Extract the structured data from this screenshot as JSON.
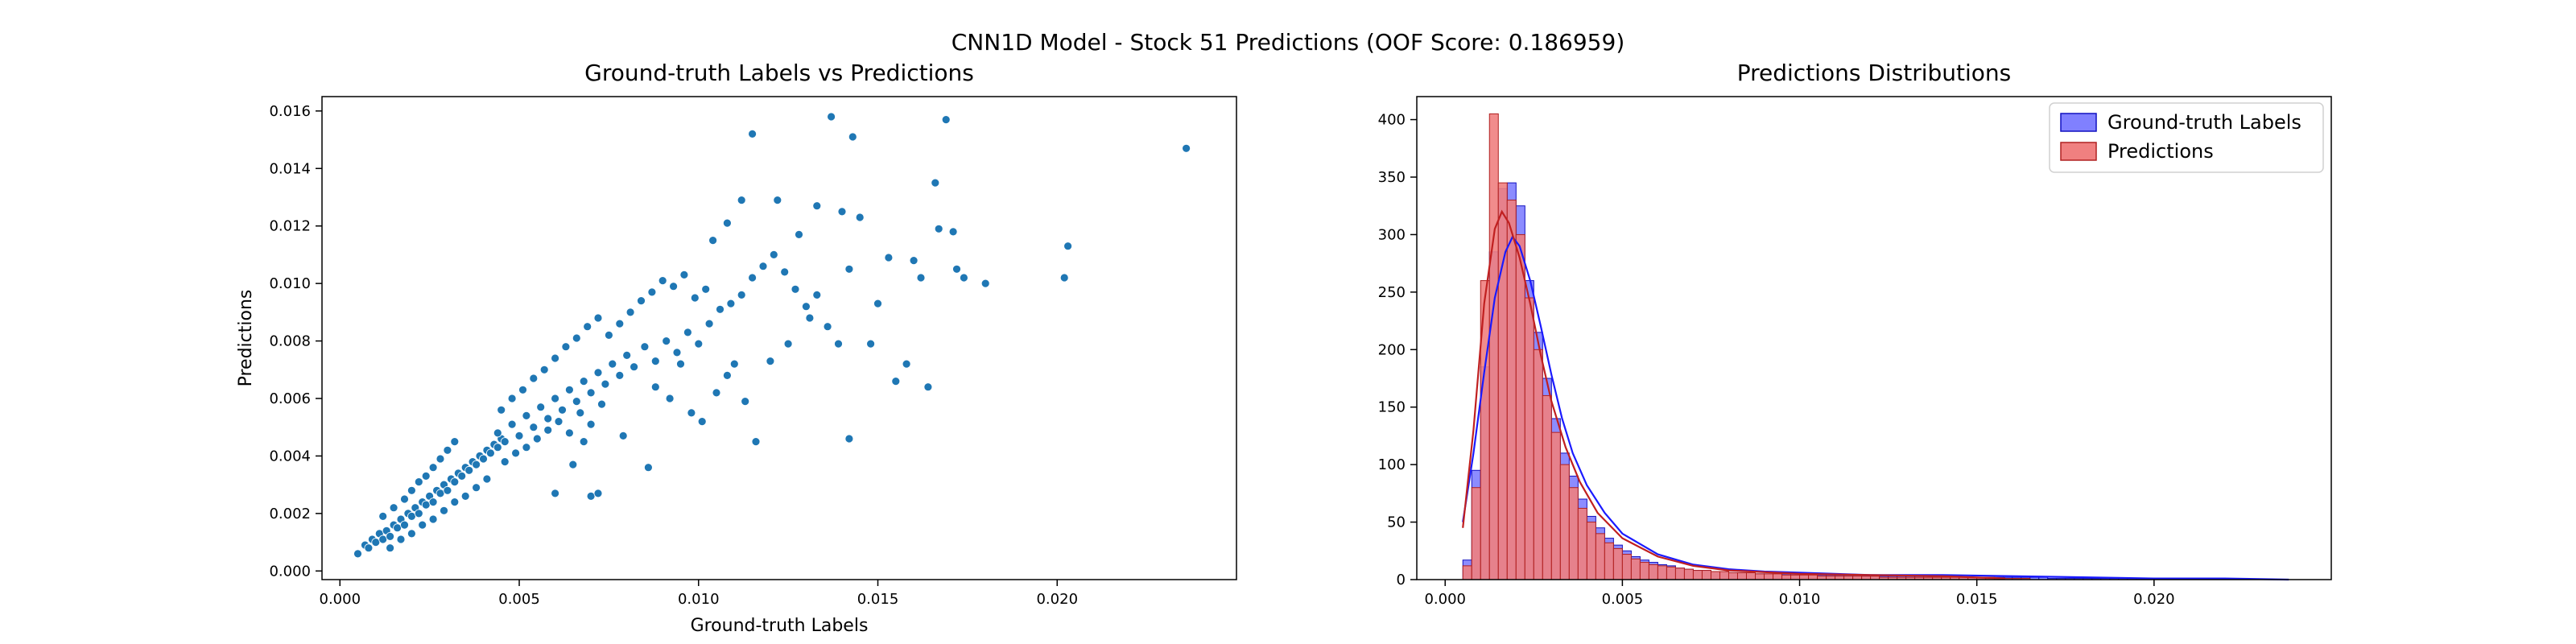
{
  "figure": {
    "suptitle": "CNN1D Model - Stock 51 Predictions (OOF Score: 0.186959)"
  },
  "chart_data": [
    {
      "type": "scatter",
      "title": "Ground-truth Labels vs Predictions",
      "xlabel": "Ground-truth Labels",
      "ylabel": "Predictions",
      "xlim": [
        -0.0005,
        0.025
      ],
      "ylim": [
        -0.0003,
        0.0165
      ],
      "xticks": [
        0.0,
        0.005,
        0.01,
        0.015,
        0.02
      ],
      "xtick_labels": [
        "0.000",
        "0.005",
        "0.010",
        "0.015",
        "0.020"
      ],
      "yticks": [
        0.0,
        0.002,
        0.004,
        0.006,
        0.008,
        0.01,
        0.012,
        0.014,
        0.016
      ],
      "ytick_labels": [
        "0.000",
        "0.002",
        "0.004",
        "0.006",
        "0.008",
        "0.010",
        "0.012",
        "0.014",
        "0.016"
      ],
      "grid": false,
      "color": "#1f77b4",
      "points": [
        [
          0.0005,
          0.0006
        ],
        [
          0.0007,
          0.0009
        ],
        [
          0.0008,
          0.0008
        ],
        [
          0.0009,
          0.0011
        ],
        [
          0.001,
          0.001
        ],
        [
          0.0011,
          0.0013
        ],
        [
          0.0012,
          0.0011
        ],
        [
          0.0013,
          0.0014
        ],
        [
          0.0014,
          0.0012
        ],
        [
          0.0015,
          0.0016
        ],
        [
          0.0016,
          0.0015
        ],
        [
          0.0017,
          0.0018
        ],
        [
          0.0018,
          0.0016
        ],
        [
          0.0019,
          0.002
        ],
        [
          0.002,
          0.0019
        ],
        [
          0.0021,
          0.0022
        ],
        [
          0.0022,
          0.002
        ],
        [
          0.0023,
          0.0024
        ],
        [
          0.0024,
          0.0023
        ],
        [
          0.0025,
          0.0026
        ],
        [
          0.0026,
          0.0024
        ],
        [
          0.0027,
          0.0028
        ],
        [
          0.0028,
          0.0027
        ],
        [
          0.0029,
          0.003
        ],
        [
          0.003,
          0.0028
        ],
        [
          0.0031,
          0.0032
        ],
        [
          0.0032,
          0.0031
        ],
        [
          0.0033,
          0.0034
        ],
        [
          0.0034,
          0.0033
        ],
        [
          0.0035,
          0.0036
        ],
        [
          0.0036,
          0.0035
        ],
        [
          0.0037,
          0.0038
        ],
        [
          0.0038,
          0.0037
        ],
        [
          0.0039,
          0.004
        ],
        [
          0.004,
          0.0039
        ],
        [
          0.0041,
          0.0042
        ],
        [
          0.0042,
          0.0041
        ],
        [
          0.0043,
          0.0044
        ],
        [
          0.0044,
          0.0043
        ],
        [
          0.0045,
          0.0046
        ],
        [
          0.0012,
          0.0019
        ],
        [
          0.0015,
          0.0022
        ],
        [
          0.0018,
          0.0025
        ],
        [
          0.002,
          0.0028
        ],
        [
          0.0022,
          0.0031
        ],
        [
          0.0024,
          0.0033
        ],
        [
          0.0026,
          0.0036
        ],
        [
          0.0028,
          0.0039
        ],
        [
          0.003,
          0.0042
        ],
        [
          0.0032,
          0.0045
        ],
        [
          0.0014,
          0.0008
        ],
        [
          0.0017,
          0.0011
        ],
        [
          0.002,
          0.0013
        ],
        [
          0.0023,
          0.0016
        ],
        [
          0.0026,
          0.0018
        ],
        [
          0.0029,
          0.0021
        ],
        [
          0.0032,
          0.0024
        ],
        [
          0.0035,
          0.0026
        ],
        [
          0.0038,
          0.0029
        ],
        [
          0.0041,
          0.0032
        ],
        [
          0.0044,
          0.0048
        ],
        [
          0.0046,
          0.0045
        ],
        [
          0.0048,
          0.0051
        ],
        [
          0.005,
          0.0047
        ],
        [
          0.0052,
          0.0054
        ],
        [
          0.0054,
          0.005
        ],
        [
          0.0056,
          0.0057
        ],
        [
          0.0058,
          0.0053
        ],
        [
          0.006,
          0.006
        ],
        [
          0.0062,
          0.0056
        ],
        [
          0.0064,
          0.0063
        ],
        [
          0.0066,
          0.0059
        ],
        [
          0.0068,
          0.0066
        ],
        [
          0.007,
          0.0062
        ],
        [
          0.0072,
          0.0069
        ],
        [
          0.0074,
          0.0065
        ],
        [
          0.0076,
          0.0072
        ],
        [
          0.0078,
          0.0068
        ],
        [
          0.008,
          0.0075
        ],
        [
          0.0082,
          0.0071
        ],
        [
          0.0046,
          0.0038
        ],
        [
          0.0049,
          0.0041
        ],
        [
          0.0052,
          0.0043
        ],
        [
          0.0055,
          0.0046
        ],
        [
          0.0058,
          0.0049
        ],
        [
          0.0061,
          0.0052
        ],
        [
          0.0064,
          0.0048
        ],
        [
          0.0067,
          0.0055
        ],
        [
          0.007,
          0.0051
        ],
        [
          0.0073,
          0.0058
        ],
        [
          0.0045,
          0.0056
        ],
        [
          0.0048,
          0.006
        ],
        [
          0.0051,
          0.0063
        ],
        [
          0.0054,
          0.0067
        ],
        [
          0.0057,
          0.007
        ],
        [
          0.006,
          0.0074
        ],
        [
          0.0063,
          0.0078
        ],
        [
          0.0066,
          0.0081
        ],
        [
          0.0069,
          0.0085
        ],
        [
          0.0072,
          0.0088
        ],
        [
          0.0075,
          0.0082
        ],
        [
          0.0078,
          0.0086
        ],
        [
          0.0081,
          0.009
        ],
        [
          0.0084,
          0.0094
        ],
        [
          0.0087,
          0.0097
        ],
        [
          0.009,
          0.0101
        ],
        [
          0.0093,
          0.0099
        ],
        [
          0.0096,
          0.0103
        ],
        [
          0.0099,
          0.0095
        ],
        [
          0.0102,
          0.0098
        ],
        [
          0.0085,
          0.0078
        ],
        [
          0.0088,
          0.0073
        ],
        [
          0.0091,
          0.008
        ],
        [
          0.0094,
          0.0076
        ],
        [
          0.0097,
          0.0083
        ],
        [
          0.01,
          0.0079
        ],
        [
          0.0103,
          0.0086
        ],
        [
          0.0106,
          0.0091
        ],
        [
          0.0109,
          0.0093
        ],
        [
          0.0112,
          0.0096
        ],
        [
          0.006,
          0.0027
        ],
        [
          0.0065,
          0.0037
        ],
        [
          0.007,
          0.0026
        ],
        [
          0.0072,
          0.0027
        ],
        [
          0.0086,
          0.0036
        ],
        [
          0.0079,
          0.0047
        ],
        [
          0.0068,
          0.0045
        ],
        [
          0.0088,
          0.0064
        ],
        [
          0.0092,
          0.006
        ],
        [
          0.0098,
          0.0055
        ],
        [
          0.0105,
          0.0062
        ],
        [
          0.0108,
          0.0068
        ],
        [
          0.0101,
          0.0052
        ],
        [
          0.0095,
          0.0072
        ],
        [
          0.011,
          0.0072
        ],
        [
          0.0113,
          0.0059
        ],
        [
          0.0116,
          0.0045
        ],
        [
          0.012,
          0.0073
        ],
        [
          0.0125,
          0.0079
        ],
        [
          0.0131,
          0.0088
        ],
        [
          0.0115,
          0.0102
        ],
        [
          0.0118,
          0.0106
        ],
        [
          0.0121,
          0.011
        ],
        [
          0.0124,
          0.0104
        ],
        [
          0.0127,
          0.0098
        ],
        [
          0.013,
          0.0092
        ],
        [
          0.0133,
          0.0096
        ],
        [
          0.0136,
          0.0085
        ],
        [
          0.0139,
          0.0079
        ],
        [
          0.0142,
          0.0105
        ],
        [
          0.0104,
          0.0115
        ],
        [
          0.0108,
          0.0121
        ],
        [
          0.0112,
          0.0129
        ],
        [
          0.0115,
          0.0152
        ],
        [
          0.0122,
          0.0129
        ],
        [
          0.0128,
          0.0117
        ],
        [
          0.0133,
          0.0127
        ],
        [
          0.0137,
          0.0158
        ],
        [
          0.014,
          0.0125
        ],
        [
          0.0143,
          0.0151
        ],
        [
          0.0145,
          0.0123
        ],
        [
          0.015,
          0.0093
        ],
        [
          0.0153,
          0.0109
        ],
        [
          0.0155,
          0.0066
        ],
        [
          0.0158,
          0.0072
        ],
        [
          0.0162,
          0.0102
        ],
        [
          0.0164,
          0.0064
        ],
        [
          0.0166,
          0.0135
        ],
        [
          0.0167,
          0.0119
        ],
        [
          0.0169,
          0.0157
        ],
        [
          0.0171,
          0.0118
        ],
        [
          0.0172,
          0.0105
        ],
        [
          0.0174,
          0.0102
        ],
        [
          0.018,
          0.01
        ],
        [
          0.0202,
          0.0102
        ],
        [
          0.0203,
          0.0113
        ],
        [
          0.0236,
          0.0147
        ],
        [
          0.0142,
          0.0046
        ],
        [
          0.016,
          0.0108
        ],
        [
          0.0148,
          0.0079
        ]
      ]
    },
    {
      "type": "histogram",
      "title": "Predictions Distributions",
      "xlabel": "",
      "ylabel": "",
      "xlim": [
        -0.0008,
        0.025
      ],
      "ylim": [
        0,
        420
      ],
      "xticks": [
        0.0,
        0.005,
        0.01,
        0.015,
        0.02
      ],
      "xtick_labels": [
        "0.000",
        "0.005",
        "0.010",
        "0.015",
        "0.020"
      ],
      "yticks": [
        0,
        50,
        100,
        150,
        200,
        250,
        300,
        350,
        400
      ],
      "ytick_labels": [
        "0",
        "50",
        "100",
        "150",
        "200",
        "250",
        "300",
        "350",
        "400"
      ],
      "grid": false,
      "legend": {
        "location": "upper right",
        "entries": [
          "Ground-truth Labels",
          "Predictions"
        ]
      },
      "bin_width": 0.00025,
      "bin_start": 0.0005,
      "series": [
        {
          "name": "Ground-truth Labels",
          "face": "#8080ff",
          "edge": "#1010c0",
          "kde_color": "#1a1aff",
          "counts": [
            17,
            95,
            185,
            285,
            340,
            345,
            325,
            260,
            215,
            175,
            140,
            110,
            90,
            70,
            55,
            45,
            36,
            30,
            25,
            20,
            17,
            15,
            13,
            12,
            10,
            9,
            8,
            8,
            7,
            7,
            6,
            6,
            6,
            5,
            5,
            5,
            5,
            5,
            5,
            4,
            4,
            4,
            4,
            4,
            4,
            3,
            3,
            3,
            3,
            3,
            3,
            3,
            2,
            2,
            2,
            2,
            2,
            2,
            2,
            2,
            2,
            2,
            2,
            2,
            2,
            2,
            1,
            1,
            1,
            1,
            1,
            1,
            1,
            1,
            1,
            1,
            1,
            1,
            1,
            1
          ],
          "kde": [
            [
              0.0005,
              50
            ],
            [
              0.0008,
              110
            ],
            [
              0.0011,
              180
            ],
            [
              0.0014,
              245
            ],
            [
              0.0017,
              285
            ],
            [
              0.0019,
              298
            ],
            [
              0.0021,
              290
            ],
            [
              0.0024,
              260
            ],
            [
              0.0027,
              220
            ],
            [
              0.003,
              178
            ],
            [
              0.0033,
              140
            ],
            [
              0.0036,
              110
            ],
            [
              0.004,
              82
            ],
            [
              0.0045,
              58
            ],
            [
              0.005,
              40
            ],
            [
              0.006,
              22
            ],
            [
              0.007,
              13
            ],
            [
              0.008,
              9
            ],
            [
              0.009,
              7
            ],
            [
              0.01,
              6
            ],
            [
              0.012,
              4
            ],
            [
              0.014,
              4
            ],
            [
              0.016,
              3
            ],
            [
              0.018,
              2
            ],
            [
              0.02,
              1
            ],
            [
              0.022,
              1
            ],
            [
              0.0238,
              0
            ]
          ]
        },
        {
          "name": "Predictions",
          "face": "#f08080",
          "edge": "#b02020",
          "kde_color": "#c02020",
          "counts": [
            12,
            80,
            260,
            405,
            345,
            330,
            300,
            245,
            200,
            160,
            128,
            100,
            80,
            62,
            50,
            40,
            32,
            27,
            22,
            18,
            15,
            13,
            12,
            11,
            10,
            9,
            8,
            8,
            7,
            7,
            6,
            6,
            6,
            5,
            5,
            5,
            4,
            4,
            4,
            4,
            3,
            3,
            3,
            3,
            3,
            3,
            3,
            2,
            2,
            2,
            2,
            2,
            2,
            2,
            2,
            2,
            2,
            2,
            2,
            2,
            1,
            1,
            1,
            1
          ],
          "kde": [
            [
              0.0005,
              45
            ],
            [
              0.0008,
              130
            ],
            [
              0.0011,
              240
            ],
            [
              0.0014,
              305
            ],
            [
              0.0016,
              320
            ],
            [
              0.0018,
              310
            ],
            [
              0.0021,
              280
            ],
            [
              0.0024,
              240
            ],
            [
              0.0027,
              195
            ],
            [
              0.003,
              155
            ],
            [
              0.0034,
              115
            ],
            [
              0.0038,
              85
            ],
            [
              0.0043,
              58
            ],
            [
              0.005,
              36
            ],
            [
              0.006,
              20
            ],
            [
              0.007,
              12
            ],
            [
              0.008,
              8
            ],
            [
              0.01,
              5
            ],
            [
              0.012,
              4
            ],
            [
              0.014,
              3
            ],
            [
              0.0158,
              1
            ]
          ]
        }
      ]
    }
  ]
}
